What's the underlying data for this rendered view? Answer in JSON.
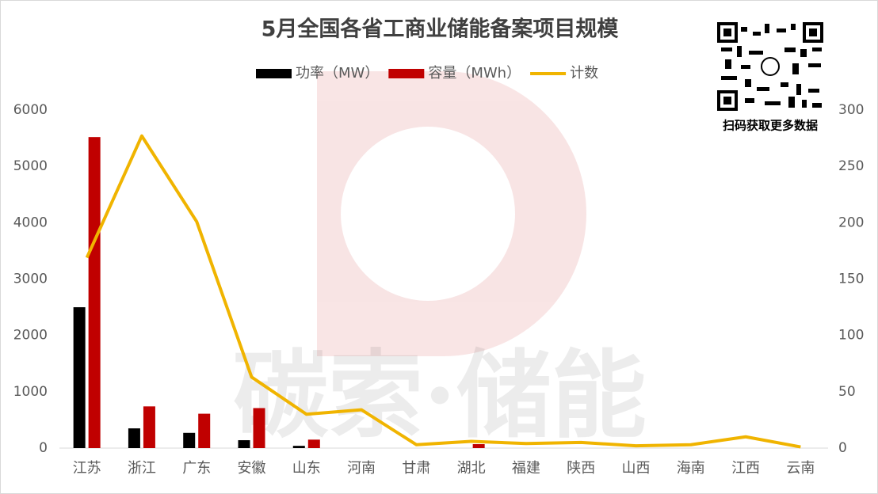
{
  "chart_data": {
    "type": "bar-line",
    "title": "5月全国各省工商业储能备案项目规模",
    "categories": [
      "江苏",
      "浙江",
      "广东",
      "安徽",
      "山东",
      "河南",
      "甘肃",
      "湖北",
      "福建",
      "陕西",
      "山西",
      "海南",
      "江西",
      "云南"
    ],
    "series": [
      {
        "name": "功率（MW）",
        "color": "#000000",
        "type": "bar",
        "values": [
          2500,
          350,
          270,
          140,
          40,
          0,
          0,
          0,
          0,
          0,
          0,
          0,
          0,
          0
        ]
      },
      {
        "name": "容量（MWh）",
        "color": "#c00000",
        "type": "bar",
        "values": [
          5520,
          740,
          610,
          710,
          150,
          0,
          0,
          70,
          0,
          0,
          0,
          0,
          0,
          0
        ]
      },
      {
        "name": "计数",
        "color": "#f0b400",
        "type": "line",
        "axis": "y2",
        "values": [
          169,
          277,
          201,
          63,
          30,
          34,
          3,
          6,
          4,
          5,
          2,
          3,
          10,
          1
        ]
      }
    ],
    "ylim": [
      0,
      6000
    ],
    "yticks": [
      0,
      1000,
      2000,
      3000,
      4000,
      5000,
      6000
    ],
    "y2lim": [
      0,
      300
    ],
    "y2ticks": [
      0,
      50,
      100,
      150,
      200,
      250,
      300
    ],
    "legend": "top",
    "grid": false
  },
  "watermark": "碳索·储能",
  "qr_caption": "扫码获取更多数据"
}
